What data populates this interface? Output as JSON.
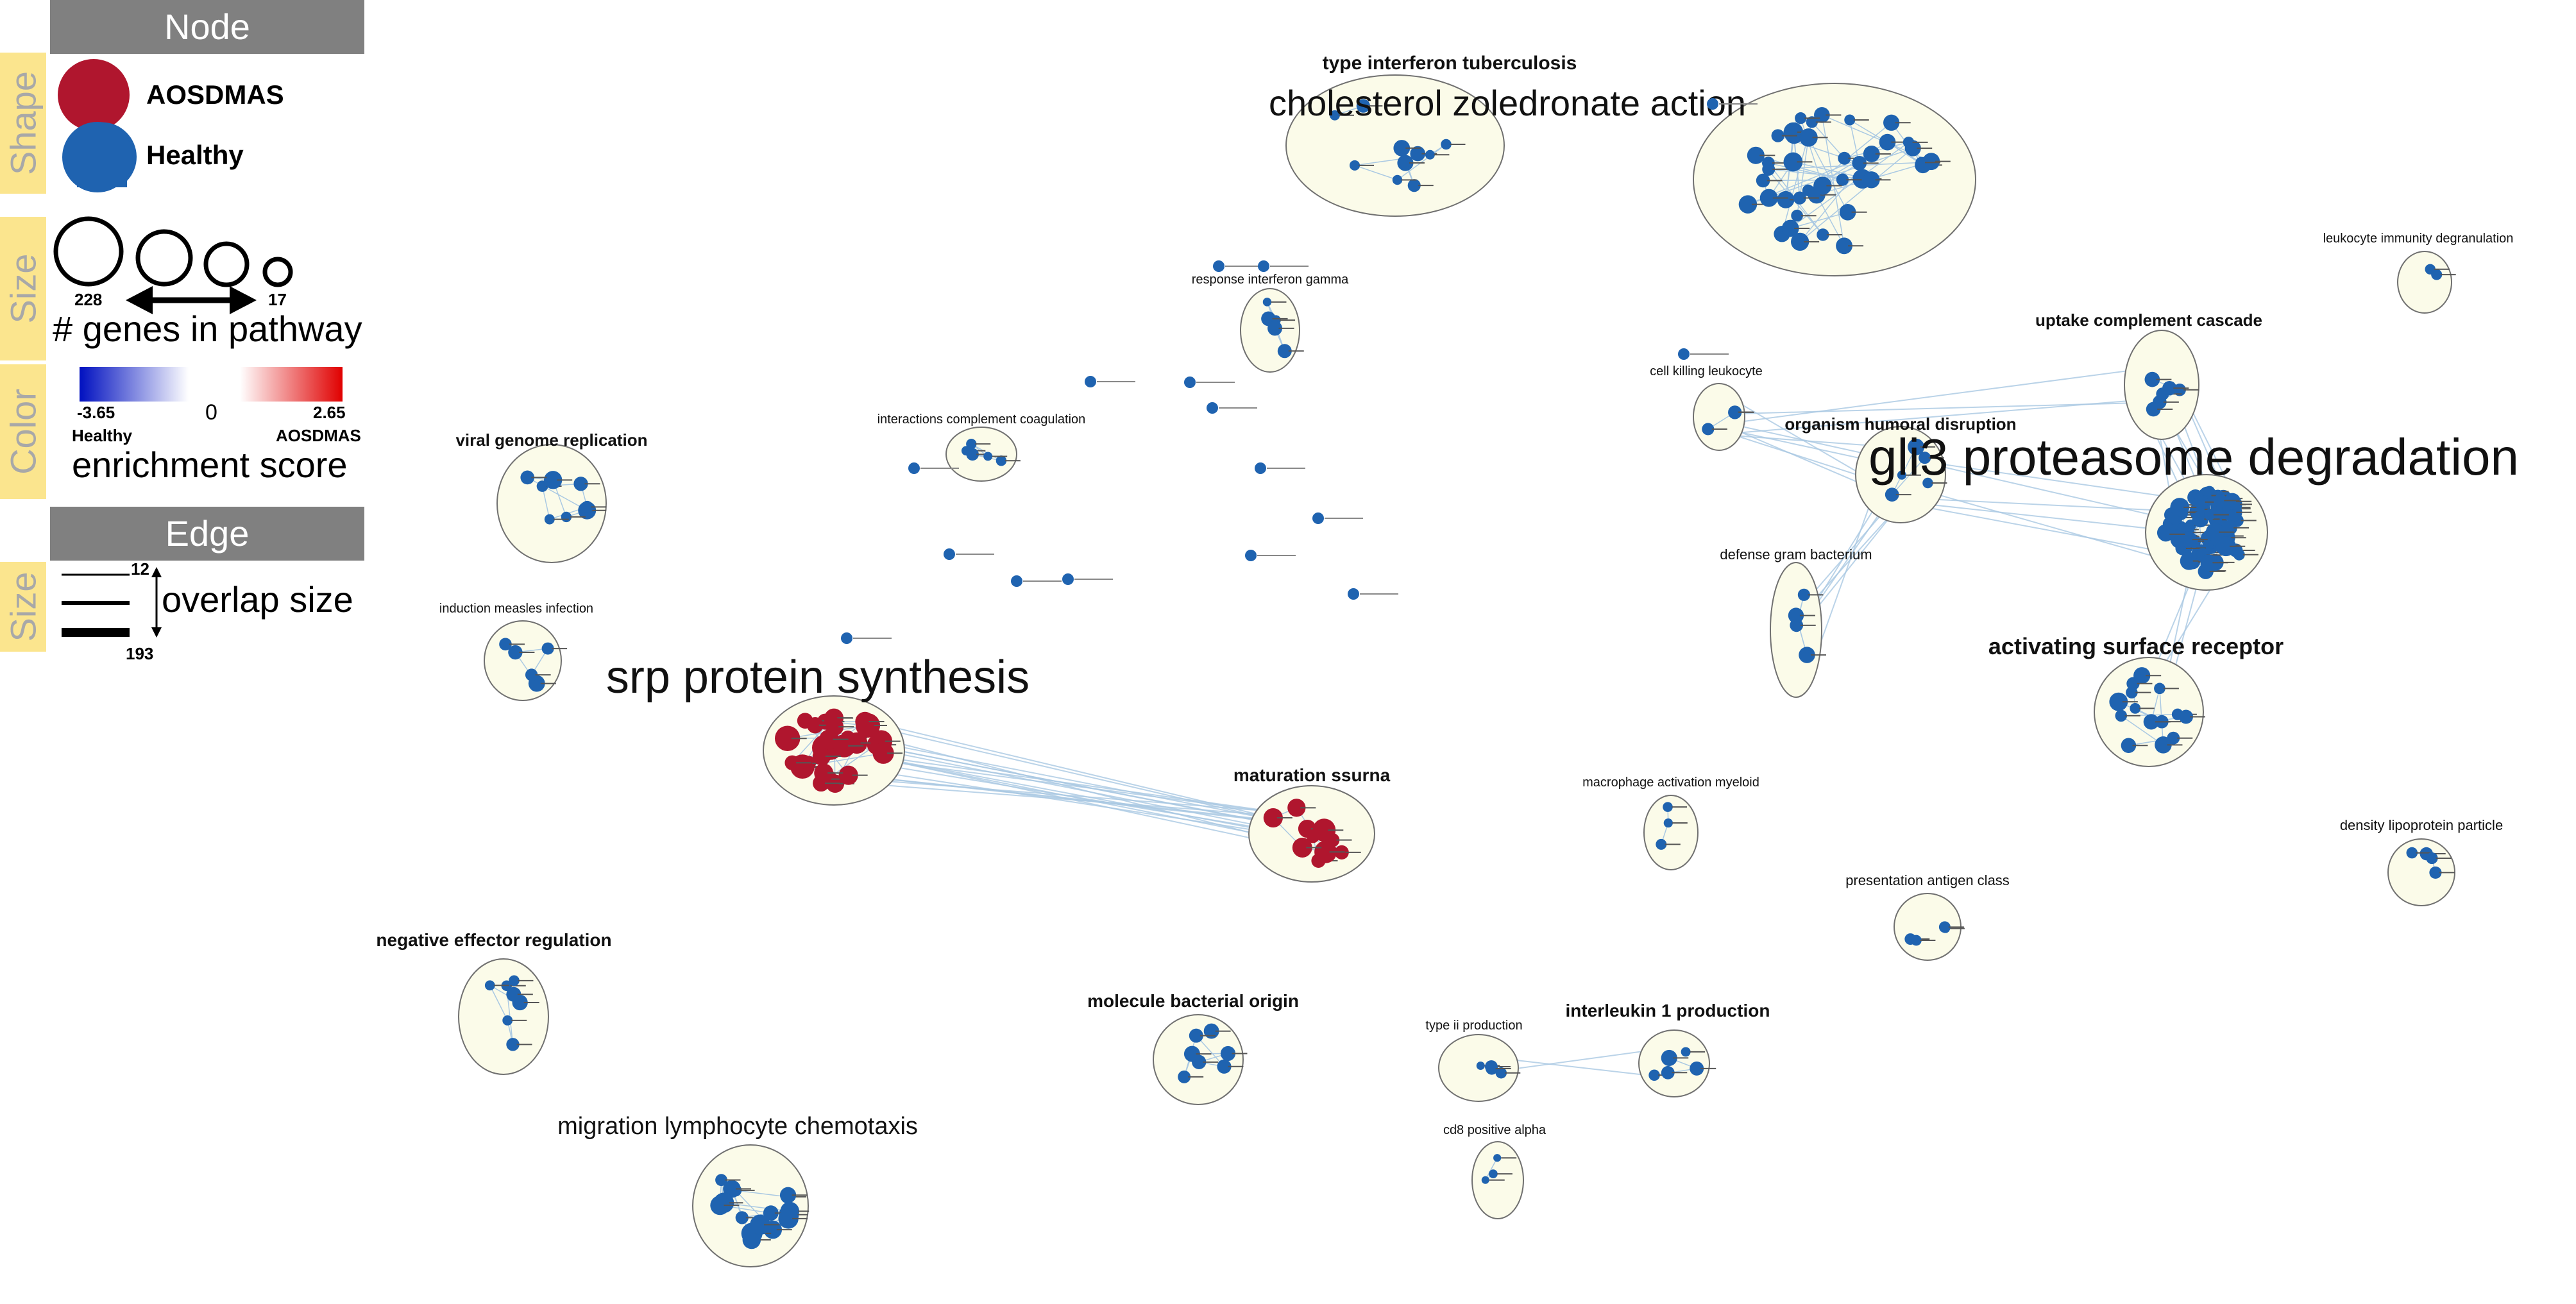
{
  "legend": {
    "node_header": "Node",
    "edge_header": "Edge",
    "side_labels": {
      "shape": "Shape",
      "size": "Size",
      "color": "Color",
      "edge_size": "Size"
    },
    "shape_items": [
      {
        "label": "AOSDMAS",
        "color": "#b0162e"
      },
      {
        "label": "Healthy",
        "color": "#1f63b0"
      }
    ],
    "size_max": "228",
    "size_min": "17",
    "size_label": "# genes in pathway",
    "color_min": "-3.65",
    "color_mid": "0",
    "color_max": "2.65",
    "color_min_label": "Healthy",
    "color_max_label": "AOSDMAS",
    "color_label": "enrichment score",
    "edge_min": "12",
    "edge_max": "193",
    "edge_label": "overlap size"
  },
  "colors": {
    "healthy": "#1f63b0",
    "aosdmas": "#b0162e",
    "cluster_fill": "#fbfbe9",
    "edge": "#aac9e3"
  },
  "clusters": [
    {
      "label": "type interferon tuberculosis",
      "color": "healthy"
    },
    {
      "label": "cholesterol zoledronate action",
      "color": "healthy"
    },
    {
      "label": "leukocyte immunity degranulation",
      "color": "healthy"
    },
    {
      "label": "response interferon gamma",
      "color": "healthy"
    },
    {
      "label": "uptake complement cascade",
      "color": "healthy"
    },
    {
      "label": "cell killing leukocyte",
      "color": "healthy"
    },
    {
      "label": "interactions complement coagulation",
      "color": "healthy"
    },
    {
      "label": "organism humoral disruption",
      "color": "healthy"
    },
    {
      "label": "gli3 proteasome degradation",
      "color": "healthy"
    },
    {
      "label": "viral genome replication",
      "color": "healthy"
    },
    {
      "label": "defense gram bacterium",
      "color": "healthy"
    },
    {
      "label": "induction measles infection",
      "color": "healthy"
    },
    {
      "label": "activating surface receptor",
      "color": "healthy"
    },
    {
      "label": "srp protein synthesis",
      "color": "aosdmas"
    },
    {
      "label": "maturation ssurna",
      "color": "aosdmas"
    },
    {
      "label": "macrophage activation myeloid",
      "color": "healthy"
    },
    {
      "label": "density lipoprotein particle",
      "color": "healthy"
    },
    {
      "label": "presentation antigen class",
      "color": "healthy"
    },
    {
      "label": "negative effector regulation",
      "color": "healthy"
    },
    {
      "label": "molecule bacterial origin",
      "color": "healthy"
    },
    {
      "label": "type ii production",
      "color": "healthy"
    },
    {
      "label": "interleukin 1 production",
      "color": "healthy"
    },
    {
      "label": "migration lymphocyte chemotaxis",
      "color": "healthy"
    },
    {
      "label": "cd8 positive alpha",
      "color": "healthy"
    }
  ]
}
